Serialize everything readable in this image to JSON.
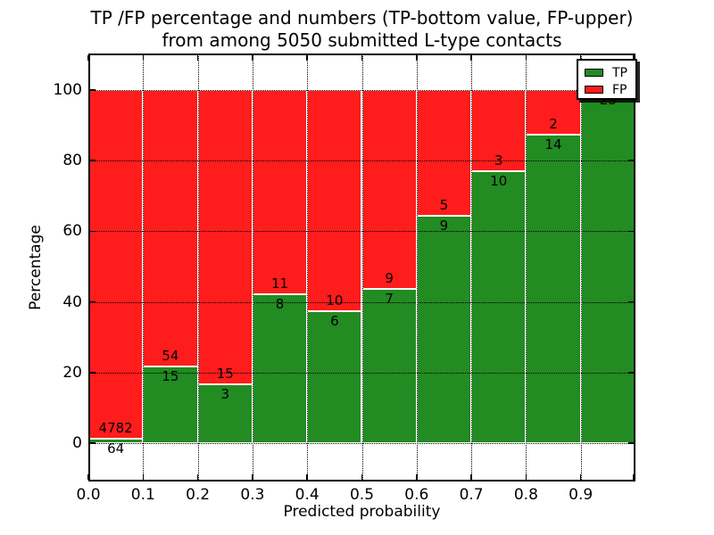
{
  "figure": {
    "title_line1": "TP /FP percentage and numbers (TP-bottom value, FP-upper)",
    "title_line2": "from among 5050 submitted L-type contacts",
    "xlabel": "Predicted probability",
    "ylabel": "Percentage"
  },
  "legend": {
    "entries": [
      {
        "label": "TP",
        "color": "#228b22"
      },
      {
        "label": "FP",
        "color": "#ff1c1c"
      }
    ]
  },
  "chart_data": {
    "type": "bar",
    "stacked": true,
    "title": "TP /FP percentage and numbers (TP-bottom value, FP-upper) from among 5050 submitted L-type contacts",
    "xlabel": "Predicted probability",
    "ylabel": "Percentage",
    "total_submitted": 5050,
    "x_tick_labels": [
      "0.0",
      "0.1",
      "0.2",
      "0.3",
      "0.4",
      "0.5",
      "0.6",
      "0.7",
      "0.8",
      "0.9"
    ],
    "y_ticks": [
      0,
      20,
      40,
      60,
      80,
      100
    ],
    "xlim": [
      0.0,
      1.0
    ],
    "ylim": [
      -11,
      110
    ],
    "grid": true,
    "legend_position": "upper right",
    "categories": [
      "0.0-0.1",
      "0.1-0.2",
      "0.2-0.3",
      "0.3-0.4",
      "0.4-0.5",
      "0.5-0.6",
      "0.6-0.7",
      "0.7-0.8",
      "0.8-0.9",
      "0.9-1.0"
    ],
    "series": [
      {
        "name": "TP",
        "color": "#228b22",
        "counts": [
          64,
          15,
          3,
          8,
          6,
          7,
          9,
          10,
          14,
          23
        ]
      },
      {
        "name": "FP",
        "color": "#ff1c1c",
        "counts": [
          4782,
          54,
          15,
          11,
          10,
          9,
          5,
          3,
          2,
          0
        ]
      }
    ],
    "tp_percent": [
      1.32,
      21.74,
      16.67,
      42.11,
      37.5,
      43.75,
      64.29,
      76.92,
      87.5,
      100.0
    ],
    "colors": {
      "tp": "#228b22",
      "fp": "#ff1c1c",
      "grid": "#000000",
      "background": "#ffffff"
    }
  }
}
